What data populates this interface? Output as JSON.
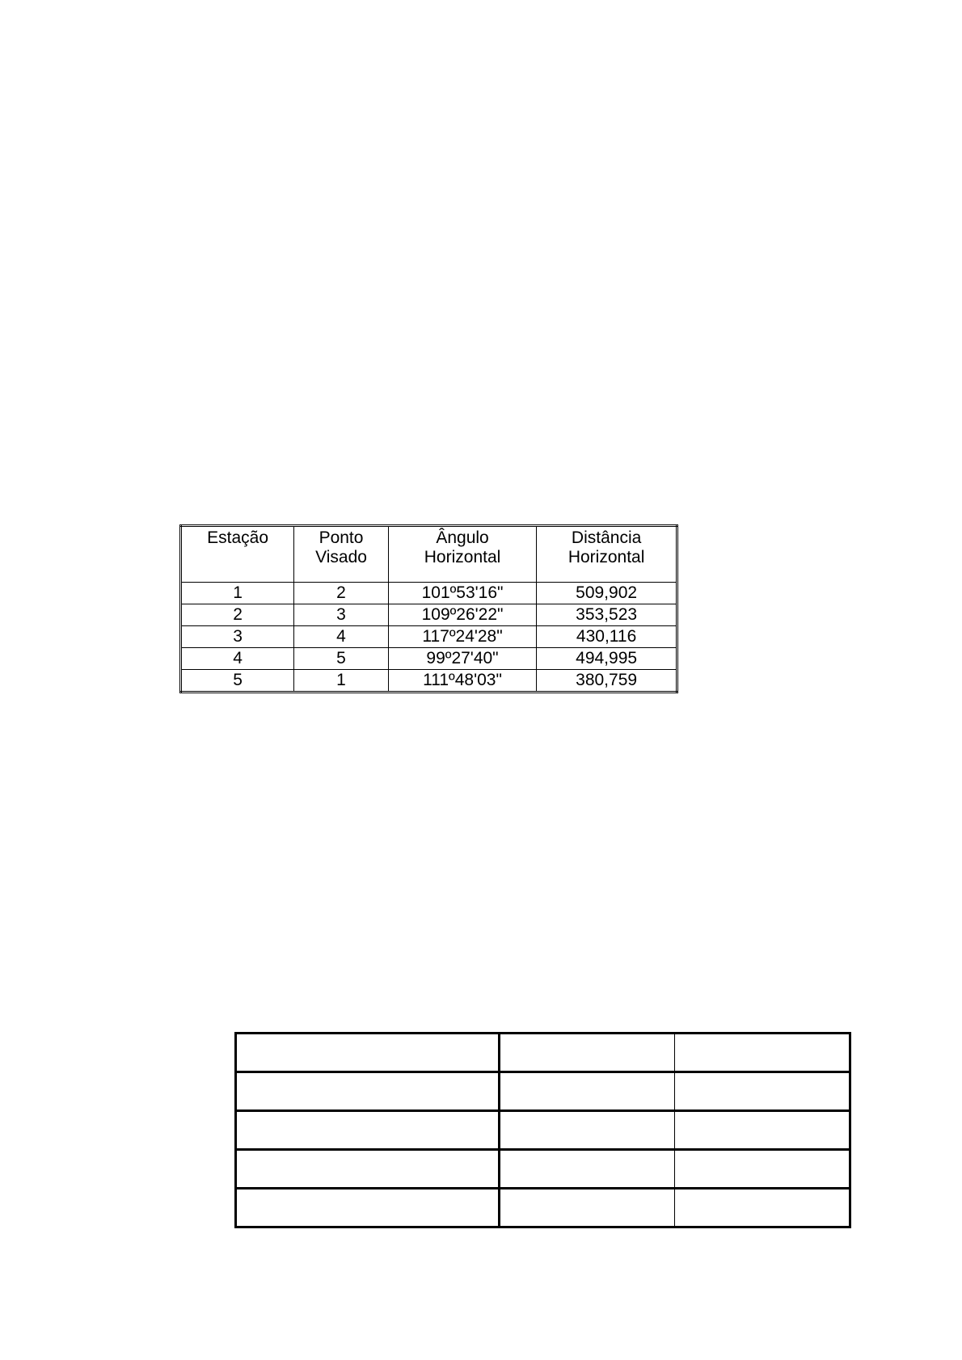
{
  "survey_table": {
    "headers": [
      [
        "Estação"
      ],
      [
        "Ponto",
        "Visado"
      ],
      [
        "Ângulo",
        "Horizontal"
      ],
      [
        "Distância",
        "Horizontal"
      ]
    ],
    "rows": [
      [
        "1",
        "2",
        "101º53'16\"",
        "509,902"
      ],
      [
        "2",
        "3",
        "109º26'22\"",
        "353,523"
      ],
      [
        "3",
        "4",
        "117º24'28\"",
        "430,116"
      ],
      [
        "4",
        "5",
        "99º27'40\"",
        "494,995"
      ],
      [
        "5",
        "1",
        "111º48'03\"",
        "380,759"
      ]
    ]
  },
  "blank_table": {
    "rows": 5,
    "columns": 3
  }
}
